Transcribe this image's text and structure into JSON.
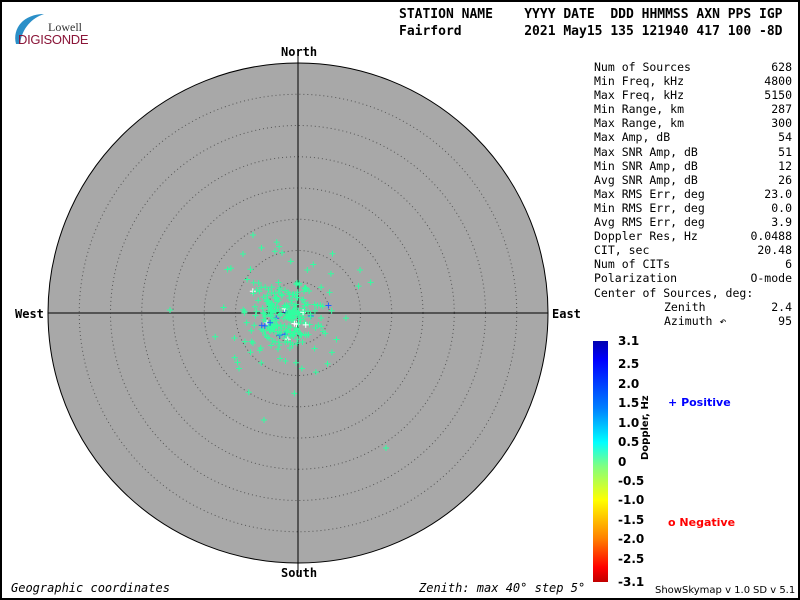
{
  "logo": {
    "line1": "Lowell",
    "line2": "DIGISONDE"
  },
  "header": {
    "labels": "STATION NAME    YYYY DATE  DDD HHMMSS AXN PPS IGP",
    "values": "Fairford        2021 May15 135 121940 417 100 -8D"
  },
  "directions": {
    "north": "North",
    "south": "South",
    "east": "East",
    "west": "West"
  },
  "stats": [
    {
      "label": "Num of Sources",
      "value": "628"
    },
    {
      "label": "Min Freq, kHz",
      "value": "4800"
    },
    {
      "label": "Max Freq, kHz",
      "value": "5150"
    },
    {
      "label": "Min Range, km",
      "value": "287"
    },
    {
      "label": "Max Range, km",
      "value": "300"
    },
    {
      "label": "Max Amp, dB",
      "value": "54"
    },
    {
      "label": "Max SNR Amp, dB",
      "value": "51"
    },
    {
      "label": "Min SNR Amp, dB",
      "value": "12"
    },
    {
      "label": "Avg SNR Amp, dB",
      "value": "26"
    },
    {
      "label": "Max RMS Err, deg",
      "value": "23.0"
    },
    {
      "label": "Min RMS Err, deg",
      "value": "0.0"
    },
    {
      "label": "Avg RMS Err, deg",
      "value": "3.9"
    },
    {
      "label": "Doppler Res, Hz",
      "value": "0.0488"
    },
    {
      "label": "CIT, sec",
      "value": "20.48"
    },
    {
      "label": "Num of CITs",
      "value": "6"
    },
    {
      "label": "Polarization",
      "value": "O-mode"
    },
    {
      "label": "Center of Sources, deg:",
      "value": ""
    },
    {
      "label": "Zenith",
      "value": "2.4"
    },
    {
      "label": "Azimuth ↶",
      "value": "95"
    }
  ],
  "colorbar": {
    "label": "Doppler, Hz",
    "ticks": [
      "3.1",
      "2.5",
      "2.0",
      "1.5",
      "1.0",
      "0.5",
      "0",
      "-0.5",
      "-1.0",
      "-1.5",
      "-2.0",
      "-2.5",
      "-3.1"
    ],
    "range": [
      -3.1,
      3.1
    ]
  },
  "legend": {
    "positive": "Positive",
    "negative": "Negative",
    "positive_symbol": "+",
    "negative_symbol": "o",
    "positive_color": "#0000ff",
    "negative_color": "#ff0000"
  },
  "footer": {
    "coords": "Geographic coordinates",
    "zenith": "Zenith: max 40°  step 5°",
    "version1": "ShowSkymap v 1.0",
    "version2": "SD v 5.1"
  },
  "skymap": {
    "zenith_max_deg": 40,
    "zenith_step_deg": 5,
    "background": "#a8a8a8",
    "dominant_point_color": "#30ffa0"
  }
}
